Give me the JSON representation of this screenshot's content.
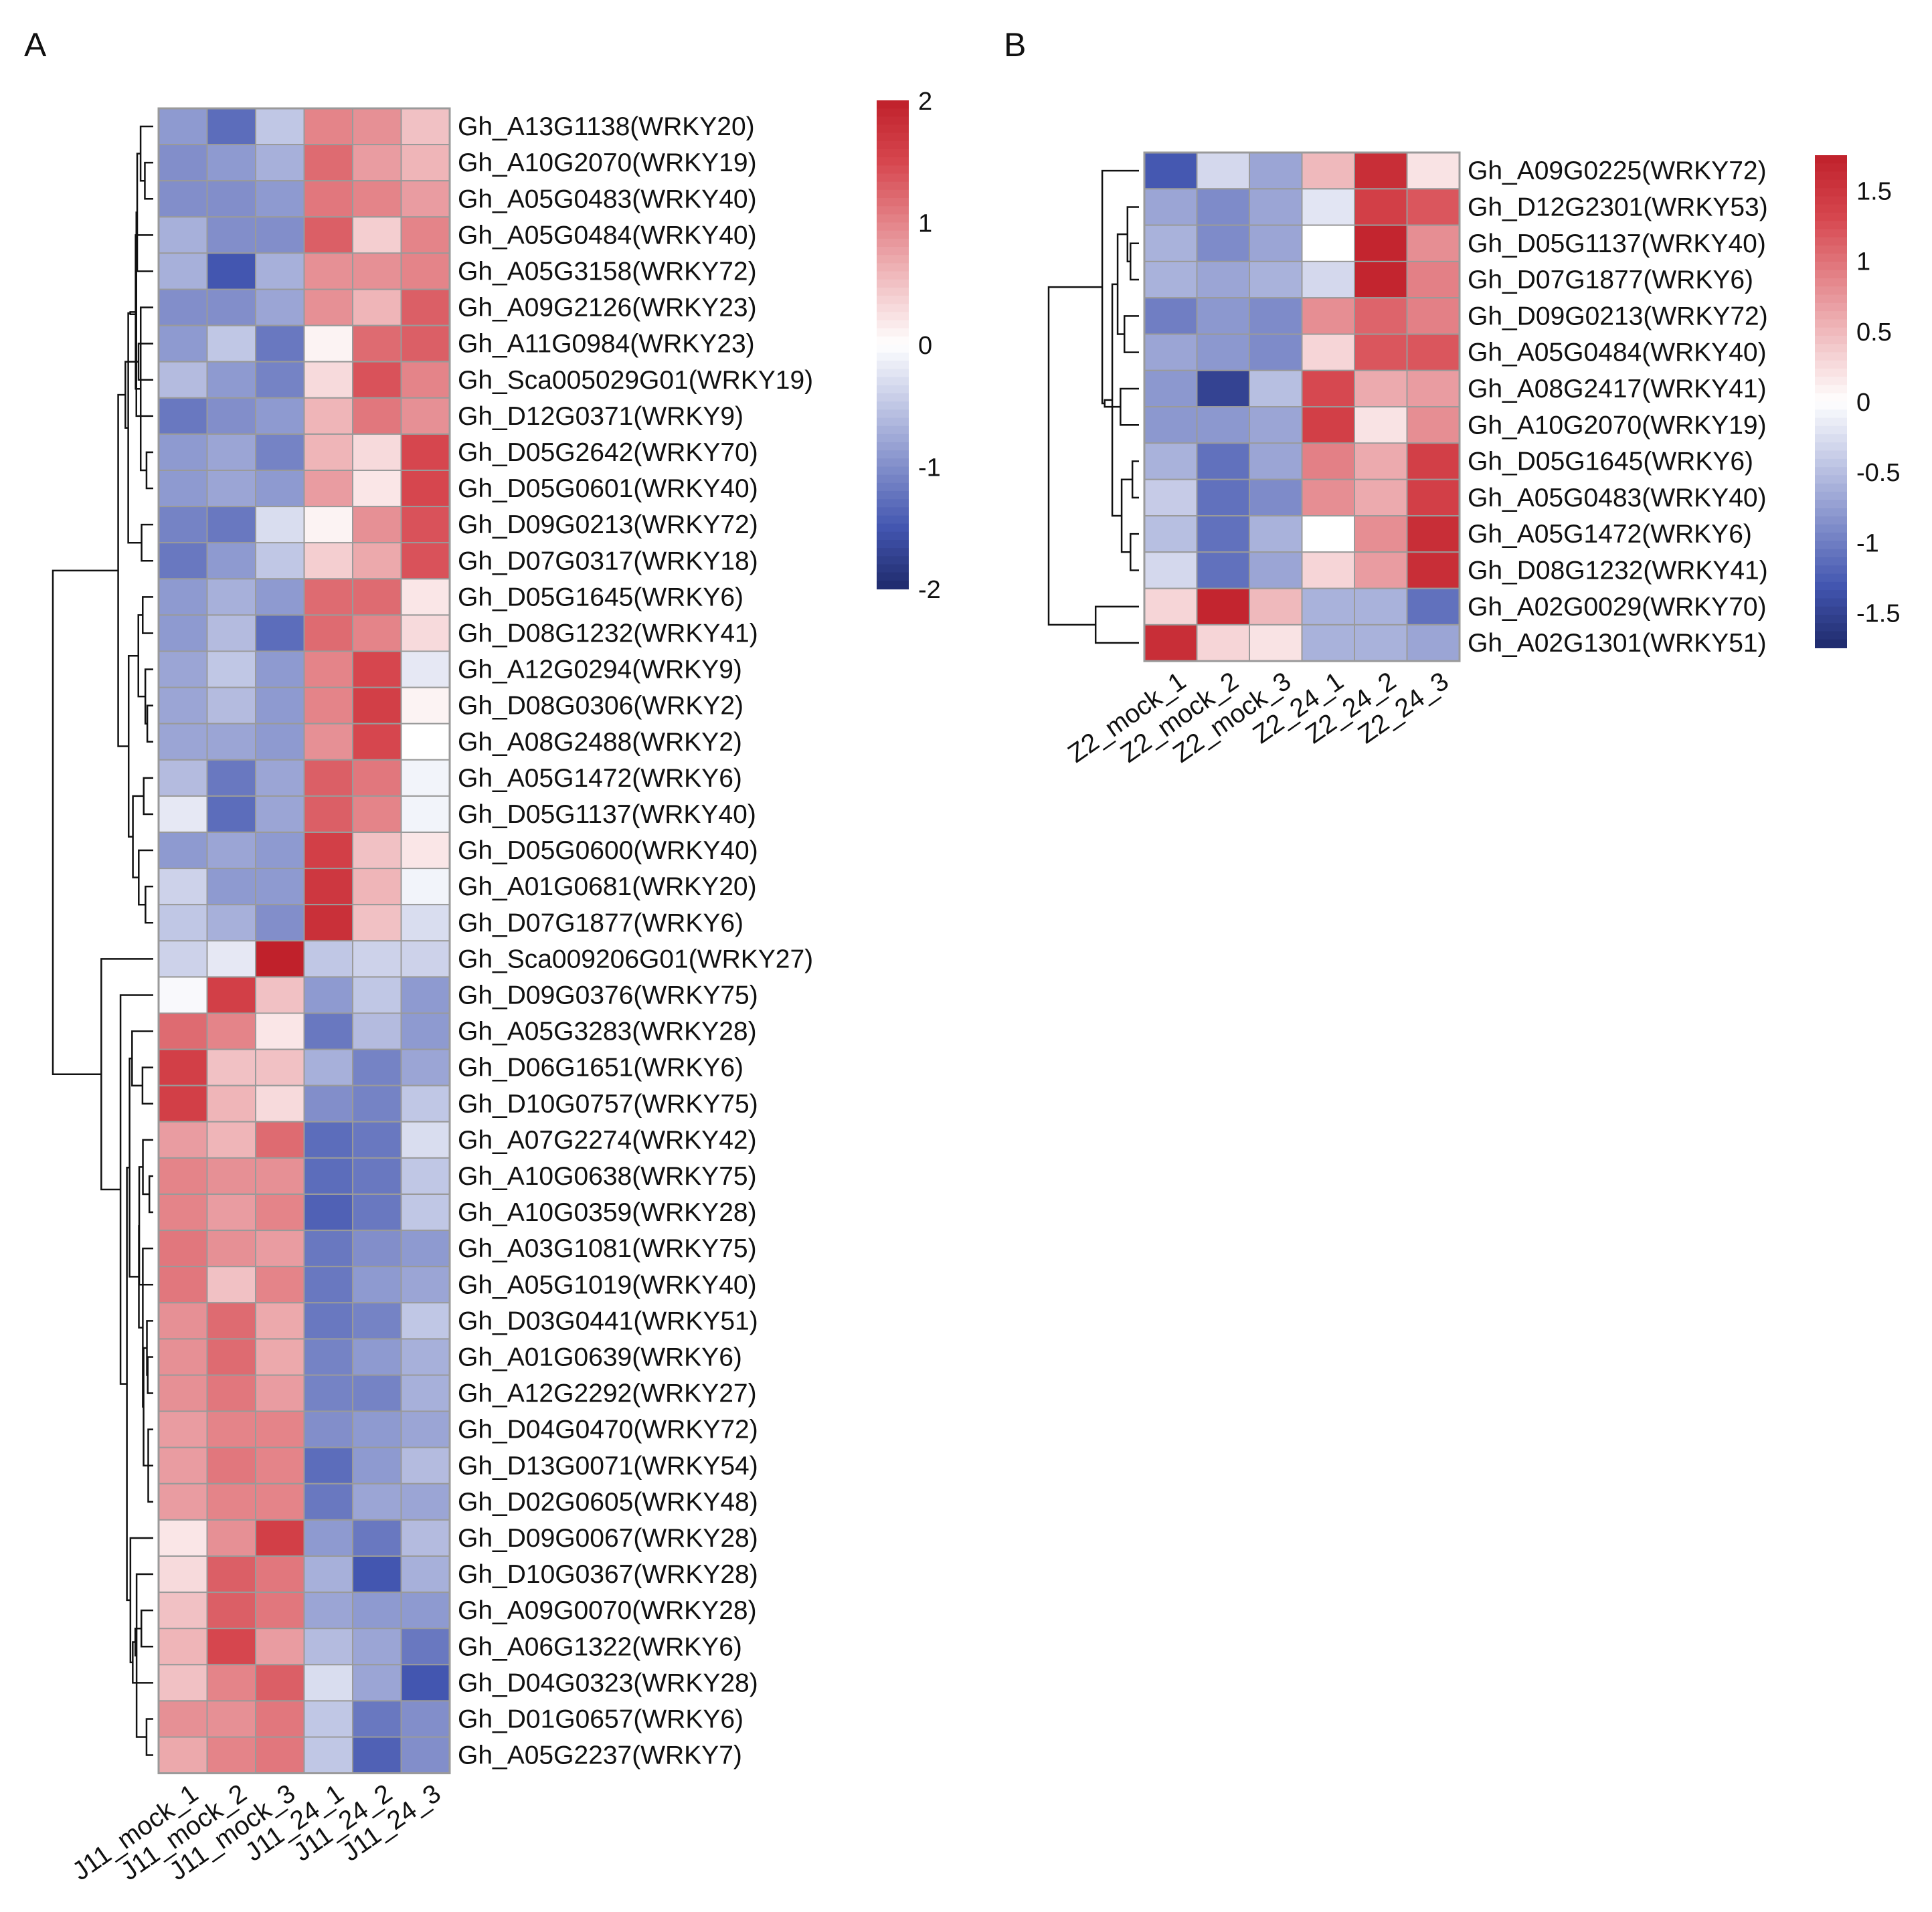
{
  "chart_data": [
    {
      "type": "heatmap",
      "panel_label": "A",
      "columns": [
        "J11_mock_1",
        "J11_mock_2",
        "J11_mock_3",
        "J11_24_1",
        "J11_24_2",
        "J11_24_3"
      ],
      "rows": [
        "Gh_A13G1138(WRKY20)",
        "Gh_A10G2070(WRKY19)",
        "Gh_A05G0483(WRKY40)",
        "Gh_A05G0484(WRKY40)",
        "Gh_A05G3158(WRKY72)",
        "Gh_A09G2126(WRKY23)",
        "Gh_A11G0984(WRKY23)",
        "Gh_Sca005029G01(WRKY19)",
        "Gh_D12G0371(WRKY9)",
        "Gh_D05G2642(WRKY70)",
        "Gh_D05G0601(WRKY40)",
        "Gh_D09G0213(WRKY72)",
        "Gh_D07G0317(WRKY18)",
        "Gh_D05G1645(WRKY6)",
        "Gh_D08G1232(WRKY41)",
        "Gh_A12G0294(WRKY9)",
        "Gh_D08G0306(WRKY2)",
        "Gh_A08G2488(WRKY2)",
        "Gh_A05G1472(WRKY6)",
        "Gh_D05G1137(WRKY40)",
        "Gh_D05G0600(WRKY40)",
        "Gh_A01G0681(WRKY20)",
        "Gh_D07G1877(WRKY6)",
        "Gh_Sca009206G01(WRKY27)",
        "Gh_D09G0376(WRKY75)",
        "Gh_A05G3283(WRKY28)",
        "Gh_D06G1651(WRKY6)",
        "Gh_D10G0757(WRKY75)",
        "Gh_A07G2274(WRKY42)",
        "Gh_A10G0638(WRKY75)",
        "Gh_A10G0359(WRKY28)",
        "Gh_A03G1081(WRKY75)",
        "Gh_A05G1019(WRKY40)",
        "Gh_D03G0441(WRKY51)",
        "Gh_A01G0639(WRKY6)",
        "Gh_A12G2292(WRKY27)",
        "Gh_D04G0470(WRKY72)",
        "Gh_D13G0071(WRKY54)",
        "Gh_D02G0605(WRKY48)",
        "Gh_D09G0067(WRKY28)",
        "Gh_D10G0367(WRKY28)",
        "Gh_A09G0070(WRKY28)",
        "Gh_A06G1322(WRKY6)",
        "Gh_D04G0323(WRKY28)",
        "Gh_D01G0657(WRKY6)",
        "Gh_A05G2237(WRKY7)"
      ],
      "values": [
        [
          -0.9,
          -1.3,
          -0.5,
          1.0,
          0.9,
          0.5
        ],
        [
          -1.0,
          -0.9,
          -0.7,
          1.2,
          0.8,
          0.6
        ],
        [
          -1.0,
          -1.0,
          -0.9,
          1.1,
          1.0,
          0.8
        ],
        [
          -0.7,
          -1.0,
          -1.0,
          1.3,
          0.4,
          1.0
        ],
        [
          -0.7,
          -1.5,
          -0.7,
          0.9,
          0.9,
          1.0
        ],
        [
          -1.0,
          -1.0,
          -0.8,
          0.9,
          0.6,
          1.3
        ],
        [
          -0.9,
          -0.5,
          -1.2,
          0.1,
          1.2,
          1.3
        ],
        [
          -0.6,
          -0.9,
          -1.1,
          0.3,
          1.4,
          1.0
        ],
        [
          -1.2,
          -1.0,
          -0.9,
          0.6,
          1.1,
          0.9
        ],
        [
          -0.9,
          -0.8,
          -1.1,
          0.6,
          0.3,
          1.5
        ],
        [
          -0.9,
          -0.8,
          -0.9,
          0.8,
          0.2,
          1.5
        ],
        [
          -1.1,
          -1.2,
          -0.3,
          0.1,
          0.9,
          1.4
        ],
        [
          -1.2,
          -0.9,
          -0.5,
          0.4,
          0.7,
          1.4
        ],
        [
          -0.9,
          -0.7,
          -0.9,
          1.2,
          1.2,
          0.2
        ],
        [
          -0.9,
          -0.6,
          -1.3,
          1.2,
          1.0,
          0.3
        ],
        [
          -0.8,
          -0.5,
          -0.9,
          1.0,
          1.5,
          -0.2
        ],
        [
          -0.8,
          -0.6,
          -0.9,
          1.0,
          1.6,
          0.1
        ],
        [
          -0.8,
          -0.8,
          -0.9,
          0.9,
          1.5,
          0.0
        ],
        [
          -0.6,
          -1.2,
          -0.8,
          1.3,
          1.1,
          -0.1
        ],
        [
          -0.2,
          -1.3,
          -0.8,
          1.3,
          1.0,
          -0.1
        ],
        [
          -0.9,
          -0.8,
          -0.9,
          1.6,
          0.5,
          0.2
        ],
        [
          -0.4,
          -0.9,
          -0.9,
          1.7,
          0.6,
          -0.1
        ],
        [
          -0.5,
          -0.7,
          -1.0,
          1.8,
          0.5,
          -0.3
        ],
        [
          -0.4,
          -0.2,
          2.0,
          -0.5,
          -0.4,
          -0.4
        ],
        [
          -0.05,
          1.6,
          0.5,
          -0.9,
          -0.5,
          -0.9
        ],
        [
          1.2,
          1.0,
          0.2,
          -1.2,
          -0.6,
          -0.9
        ],
        [
          1.6,
          0.5,
          0.5,
          -0.7,
          -1.1,
          -0.8
        ],
        [
          1.6,
          0.6,
          0.3,
          -1.0,
          -1.1,
          -0.5
        ],
        [
          0.8,
          0.6,
          1.2,
          -1.3,
          -1.2,
          -0.3
        ],
        [
          1.0,
          0.9,
          0.9,
          -1.3,
          -1.2,
          -0.5
        ],
        [
          1.0,
          0.8,
          1.0,
          -1.4,
          -1.2,
          -0.5
        ],
        [
          1.1,
          0.9,
          0.8,
          -1.2,
          -1.0,
          -0.9
        ],
        [
          1.1,
          0.5,
          1.0,
          -1.2,
          -0.9,
          -0.8
        ],
        [
          0.9,
          1.2,
          0.7,
          -1.2,
          -1.1,
          -0.5
        ],
        [
          0.9,
          1.2,
          0.7,
          -1.1,
          -0.9,
          -0.7
        ],
        [
          0.9,
          1.1,
          0.8,
          -1.1,
          -1.1,
          -0.7
        ],
        [
          0.8,
          1.0,
          1.0,
          -1.0,
          -0.9,
          -0.8
        ],
        [
          0.8,
          1.1,
          1.0,
          -1.3,
          -0.9,
          -0.6
        ],
        [
          0.8,
          1.0,
          1.0,
          -1.2,
          -0.8,
          -0.8
        ],
        [
          0.2,
          0.9,
          1.6,
          -0.9,
          -1.2,
          -0.6
        ],
        [
          0.3,
          1.3,
          1.1,
          -0.7,
          -1.5,
          -0.7
        ],
        [
          0.5,
          1.3,
          1.1,
          -0.8,
          -0.9,
          -0.9
        ],
        [
          0.6,
          1.5,
          0.8,
          -0.6,
          -0.8,
          -1.2
        ],
        [
          0.5,
          1.0,
          1.3,
          -0.3,
          -0.8,
          -1.5
        ],
        [
          0.9,
          0.9,
          1.1,
          -0.5,
          -1.2,
          -1.0
        ],
        [
          0.7,
          1.0,
          1.1,
          -0.5,
          -1.4,
          -1.0
        ]
      ],
      "colorbar": {
        "min": -2,
        "max": 2,
        "ticks": [
          "2",
          "1",
          "0",
          "-1",
          "-2"
        ]
      },
      "colors": {
        "low": "#1f2a6b",
        "mid": "#ffffff",
        "high": "#c0212b"
      },
      "dendrogram": "rows"
    },
    {
      "type": "heatmap",
      "panel_label": "B",
      "columns": [
        "Z2_mock_1",
        "Z2_mock_2",
        "Z2_mock_3",
        "Z2_24_1",
        "Z2_24_2",
        "Z2_24_3"
      ],
      "rows": [
        "Gh_A09G0225(WRKY72)",
        "Gh_D12G2301(WRKY53)",
        "Gh_D05G1137(WRKY40)",
        "Gh_D07G1877(WRKY6)",
        "Gh_D09G0213(WRKY72)",
        "Gh_A05G0484(WRKY40)",
        "Gh_A08G2417(WRKY41)",
        "Gh_A10G2070(WRKY19)",
        "Gh_D05G1645(WRKY6)",
        "Gh_A05G0483(WRKY40)",
        "Gh_A05G1472(WRKY6)",
        "Gh_D08G1232(WRKY41)",
        "Gh_A02G0029(WRKY70)",
        "Gh_A02G1301(WRKY51)"
      ],
      "values": [
        [
          -1.3,
          -0.3,
          -0.7,
          0.5,
          1.6,
          0.2
        ],
        [
          -0.7,
          -0.9,
          -0.7,
          -0.2,
          1.4,
          1.2
        ],
        [
          -0.6,
          -0.9,
          -0.7,
          0.0,
          1.7,
          0.8
        ],
        [
          -0.6,
          -0.7,
          -0.6,
          -0.3,
          1.7,
          0.9
        ],
        [
          -1.0,
          -0.8,
          -0.9,
          0.8,
          1.1,
          0.9
        ],
        [
          -0.7,
          -0.8,
          -0.9,
          0.3,
          1.2,
          1.2
        ],
        [
          -0.8,
          -1.5,
          -0.5,
          1.3,
          0.6,
          0.7
        ],
        [
          -0.8,
          -0.8,
          -0.7,
          1.4,
          0.2,
          0.8
        ],
        [
          -0.6,
          -1.1,
          -0.7,
          0.9,
          0.6,
          1.4
        ],
        [
          -0.4,
          -1.1,
          -0.9,
          0.8,
          0.6,
          1.4
        ],
        [
          -0.5,
          -1.1,
          -0.6,
          0.0,
          0.8,
          1.6
        ],
        [
          -0.3,
          -1.1,
          -0.7,
          0.3,
          0.7,
          1.6
        ],
        [
          0.3,
          1.7,
          0.5,
          -0.6,
          -0.6,
          -1.1
        ],
        [
          1.6,
          0.3,
          0.2,
          -0.6,
          -0.6,
          -0.7
        ]
      ],
      "colorbar": {
        "min": -1.75,
        "max": 1.75,
        "ticks": [
          "1.5",
          "1",
          "0.5",
          "0",
          "-0.5",
          "-1",
          "-1.5"
        ]
      },
      "colors": {
        "low": "#1f2a6b",
        "mid": "#ffffff",
        "high": "#c0212b"
      },
      "dendrogram": "rows"
    }
  ]
}
